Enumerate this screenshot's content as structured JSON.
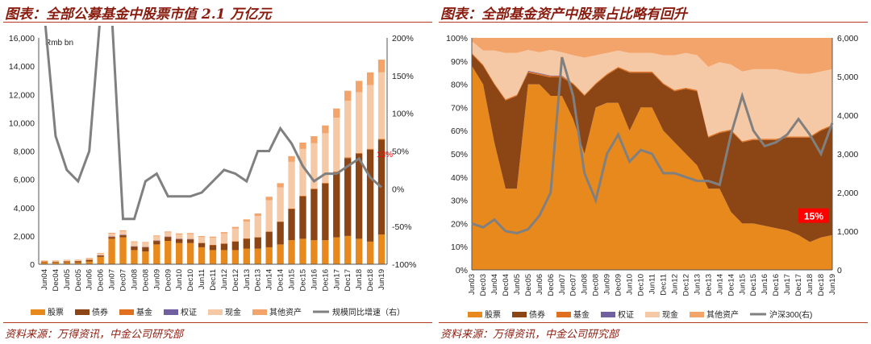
{
  "colors": {
    "stock": "#e8891d",
    "bond": "#8c4515",
    "fund": "#e0701f",
    "warrant": "#7060a0",
    "cash": "#f6c9a6",
    "other": "#f2a46b",
    "line": "#808080",
    "accent": "#8a1c0f",
    "callout": "#ff0000"
  },
  "left": {
    "title": "图表：全部公募基金中股票市值 2.1 万亿元",
    "source": "资料来源：万得资讯，中金公司研究部",
    "chart_data": {
      "type": "bar",
      "stacked": true,
      "unit": "Rmb bn",
      "categories": [
        "Jun04",
        "Dec04",
        "Jun05",
        "Dec05",
        "Jun06",
        "Dec06",
        "Jun07",
        "Dec07",
        "Jun08",
        "Dec08",
        "Jun09",
        "Dec09",
        "Jun10",
        "Dec10",
        "Jun11",
        "Dec11",
        "Jun12",
        "Dec12",
        "Jun13",
        "Dec13",
        "Jun14",
        "Dec14",
        "Jun15",
        "Dec15",
        "Jun16",
        "Dec16",
        "Jun17",
        "Dec17",
        "Jun18",
        "Dec18",
        "Jun19"
      ],
      "y_left_ticks": [
        "0",
        "2,000",
        "4,000",
        "6,000",
        "8,000",
        "10,000",
        "12,000",
        "14,000",
        "16,000"
      ],
      "ylim_left": [
        0,
        16000
      ],
      "y_right_ticks": [
        "-100%",
        "-50%",
        "0%",
        "50%",
        "100%",
        "150%",
        "200%"
      ],
      "ylim_right": [
        -100,
        200
      ],
      "series": [
        {
          "name": "股票",
          "values": [
            140,
            120,
            130,
            120,
            200,
            520,
            1800,
            1900,
            1000,
            900,
            1400,
            1650,
            1500,
            1500,
            1200,
            1000,
            1000,
            1000,
            1100,
            1100,
            1200,
            1400,
            1700,
            1800,
            1700,
            1700,
            1900,
            2000,
            1800,
            1600,
            2100
          ]
        },
        {
          "name": "债券",
          "values": [
            50,
            60,
            80,
            100,
            120,
            100,
            120,
            150,
            250,
            300,
            250,
            280,
            280,
            260,
            300,
            350,
            450,
            600,
            700,
            800,
            1100,
            1600,
            2200,
            3000,
            3600,
            4000,
            4600,
            5500,
            6000,
            6500,
            6700
          ]
        },
        {
          "name": "基金",
          "values": [
            5,
            5,
            5,
            5,
            5,
            10,
            20,
            20,
            15,
            15,
            20,
            20,
            20,
            20,
            20,
            20,
            20,
            20,
            20,
            20,
            20,
            30,
            40,
            50,
            50,
            60,
            60,
            60,
            60,
            60,
            60
          ]
        },
        {
          "name": "权证",
          "values": [
            0,
            0,
            0,
            0,
            0,
            10,
            20,
            10,
            5,
            5,
            5,
            5,
            5,
            5,
            0,
            0,
            0,
            0,
            0,
            0,
            0,
            0,
            0,
            0,
            0,
            0,
            0,
            0,
            0,
            0,
            0
          ]
        },
        {
          "name": "现金",
          "values": [
            50,
            60,
            80,
            80,
            100,
            120,
            200,
            250,
            300,
            300,
            300,
            300,
            300,
            350,
            400,
            500,
            700,
            900,
            1200,
            1500,
            2200,
            2400,
            3300,
            3300,
            3200,
            3500,
            3800,
            4000,
            4300,
            4500,
            4700
          ]
        },
        {
          "name": "其他资产",
          "values": [
            20,
            20,
            20,
            20,
            30,
            40,
            60,
            70,
            50,
            50,
            60,
            60,
            70,
            70,
            70,
            80,
            100,
            120,
            150,
            170,
            250,
            300,
            400,
            450,
            500,
            550,
            650,
            700,
            800,
            900,
            900
          ]
        }
      ],
      "line_series": {
        "name": "规模同比增速（右）",
        "axis": "right",
        "values": [
          240,
          70,
          25,
          10,
          50,
          280,
          280,
          -40,
          -40,
          10,
          20,
          -10,
          -10,
          -10,
          -5,
          10,
          25,
          20,
          10,
          50,
          50,
          80,
          60,
          30,
          10,
          20,
          20,
          30,
          40,
          15,
          2
        ]
      },
      "annotations": [
        "13%"
      ]
    }
  },
  "right": {
    "title": "图表：全部基金资产中股票占比略有回升",
    "source": "资料来源：万得资讯，中金公司研究部",
    "chart_data": {
      "type": "area",
      "stacked": true,
      "percent": true,
      "categories": [
        "Jun03",
        "Dec03",
        "Jun04",
        "Dec04",
        "Jun05",
        "Dec05",
        "Jun06",
        "Dec06",
        "Jun07",
        "Dec07",
        "Jun08",
        "Dec08",
        "Jun09",
        "Dec09",
        "Jun10",
        "Dec10",
        "Jun11",
        "Dec11",
        "Jun12",
        "Dec12",
        "Jun13",
        "Dec13",
        "Jun14",
        "Dec14",
        "Jun15",
        "Dec15",
        "Jun16",
        "Dec16",
        "Jun17",
        "Dec17",
        "Jun18",
        "Dec18",
        "Jun19"
      ],
      "y_left_ticks": [
        "0%",
        "10%",
        "20%",
        "30%",
        "40%",
        "50%",
        "60%",
        "70%",
        "80%",
        "90%",
        "100%"
      ],
      "ylim_left": [
        0,
        100
      ],
      "y_right_ticks": [
        "0",
        "1,000",
        "2,000",
        "3,000",
        "4,000",
        "5,000",
        "6,000"
      ],
      "ylim_right": [
        0,
        6000
      ],
      "series": [
        {
          "name": "股票",
          "values": [
            88,
            80,
            55,
            35,
            35,
            80,
            80,
            75,
            75,
            65,
            50,
            70,
            72,
            72,
            60,
            70,
            70,
            60,
            55,
            50,
            45,
            35,
            35,
            25,
            20,
            20,
            19,
            18,
            17,
            15,
            12,
            14,
            15
          ]
        },
        {
          "name": "债券",
          "values": [
            5,
            8,
            25,
            38,
            40,
            5,
            4,
            8,
            8,
            15,
            25,
            10,
            12,
            15,
            25,
            15,
            15,
            20,
            22,
            28,
            32,
            22,
            24,
            35,
            35,
            36,
            37,
            38,
            40,
            42,
            45,
            46,
            47
          ]
        },
        {
          "name": "基金",
          "values": [
            0.5,
            0.5,
            0.5,
            0.5,
            0.5,
            0.5,
            0.5,
            0.5,
            0.5,
            0.5,
            0.5,
            0.5,
            0.5,
            0.5,
            0.5,
            0.5,
            0.5,
            0.5,
            0.5,
            0.5,
            0.5,
            0.5,
            0.5,
            0.5,
            0.5,
            0.5,
            0.5,
            0.5,
            0.5,
            0.5,
            0.5,
            0.5,
            0.5
          ]
        },
        {
          "name": "权证",
          "values": [
            0,
            0,
            0,
            0,
            0,
            0.3,
            0.3,
            0.3,
            0.3,
            0,
            0,
            0,
            0,
            0,
            0,
            0,
            0,
            0,
            0,
            0,
            0,
            0,
            0,
            0,
            0,
            0,
            0,
            0,
            0,
            0,
            0,
            0,
            0
          ]
        },
        {
          "name": "现金",
          "values": [
            5,
            6,
            14,
            20,
            18,
            9,
            9,
            11,
            10,
            12,
            16,
            12,
            9,
            7,
            8,
            8,
            8,
            12,
            15,
            15,
            15,
            30,
            30,
            28,
            30,
            30,
            30,
            30,
            28,
            27,
            27,
            25,
            24
          ]
        },
        {
          "name": "其他资产",
          "values": [
            1.5,
            5.5,
            5.5,
            6.5,
            6.5,
            5.2,
            6.2,
            5.2,
            6.2,
            7.5,
            8.5,
            7.5,
            6.5,
            5.5,
            6.5,
            6.5,
            6.5,
            7.5,
            7.5,
            6.5,
            7.5,
            12.5,
            10.5,
            11.5,
            14.5,
            13.5,
            13.5,
            13.5,
            14.5,
            15.5,
            15.5,
            14.5,
            13.5
          ]
        }
      ],
      "line_series": {
        "name": "沪深300(右)",
        "axis": "right",
        "values": [
          1200,
          1100,
          1300,
          1000,
          950,
          1050,
          1400,
          2000,
          5500,
          4500,
          2500,
          1800,
          3000,
          3500,
          2800,
          3100,
          3000,
          2500,
          2500,
          2400,
          2300,
          2300,
          2200,
          3500,
          4500,
          3600,
          3200,
          3300,
          3500,
          3900,
          3500,
          3000,
          3800
        ]
      },
      "annotations": [
        "15%"
      ]
    }
  }
}
